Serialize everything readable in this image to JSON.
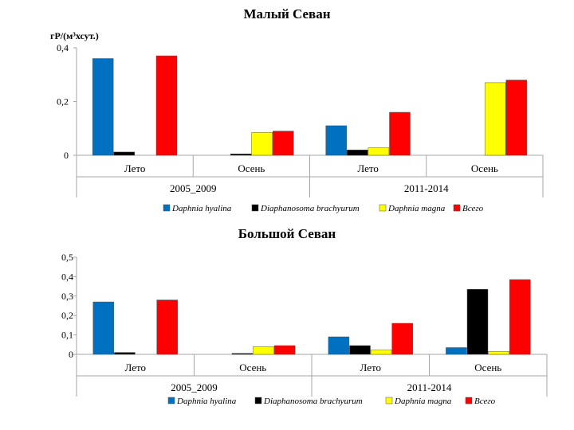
{
  "chart_data": [
    {
      "type": "bar",
      "title": "Малый Севан",
      "ylabel": "гР/(м³хсут.)",
      "ylim": [
        0,
        0.4
      ],
      "yticks": [
        "0",
        "0,2",
        "0,4"
      ],
      "periods": [
        "2005_2009",
        "2011-2014"
      ],
      "categories": [
        "Лето",
        "Осень",
        "Лето",
        "Осень"
      ],
      "legend_position": "bottom",
      "series": [
        {
          "name": "Daphnia hyalina",
          "color": "#0070C0",
          "values": [
            0.36,
            0.0,
            0.11,
            0.0
          ]
        },
        {
          "name": "Diaphanosoma brachyurum",
          "color": "#000000",
          "values": [
            0.012,
            0.005,
            0.02,
            0.0
          ]
        },
        {
          "name": "Daphnia magna",
          "color": "#FFFF00",
          "values": [
            0.0,
            0.085,
            0.028,
            0.27
          ]
        },
        {
          "name": "Всего",
          "color": "#FF0000",
          "values": [
            0.37,
            0.09,
            0.16,
            0.28
          ]
        }
      ]
    },
    {
      "type": "bar",
      "title": "Большой Севан",
      "ylabel": "",
      "ylim": [
        0,
        0.5
      ],
      "yticks": [
        "0",
        "0,1",
        "0,2",
        "0,3",
        "0,4",
        "0,5"
      ],
      "periods": [
        "2005_2009",
        "2011-2014"
      ],
      "categories": [
        "Лето",
        "Осень",
        "Лето",
        "Осень"
      ],
      "legend_position": "bottom",
      "series": [
        {
          "name": "Daphnia hyalina",
          "color": "#0070C0",
          "values": [
            0.27,
            0.0,
            0.09,
            0.035
          ]
        },
        {
          "name": "Diaphanosoma brachyurum",
          "color": "#000000",
          "values": [
            0.01,
            0.005,
            0.045,
            0.335
          ]
        },
        {
          "name": "Daphnia magna",
          "color": "#FFFF00",
          "values": [
            0.0,
            0.04,
            0.022,
            0.015
          ]
        },
        {
          "name": "Всего",
          "color": "#FF0000",
          "values": [
            0.28,
            0.045,
            0.16,
            0.385
          ]
        }
      ]
    }
  ]
}
